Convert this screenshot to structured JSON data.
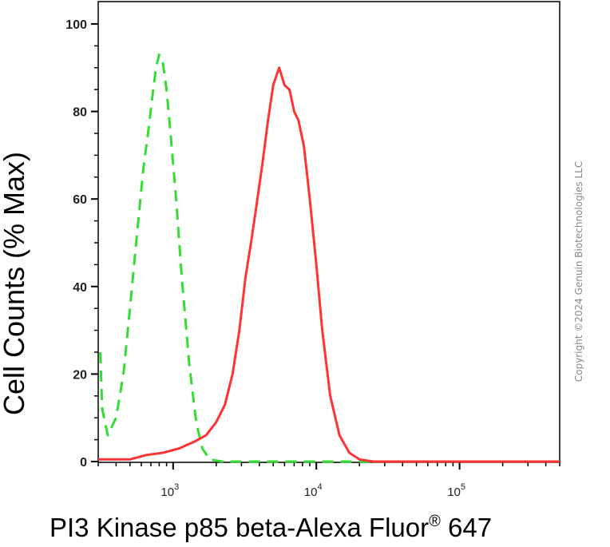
{
  "chart_data": {
    "type": "line",
    "xlabel": "PI3 Kinase p85 beta-Alexa Fluor",
    "xlabel_sup": "®",
    "xlabel_suffix": "647",
    "ylabel": "Cell Counts (% Max)",
    "xscale": "log",
    "xlim": [
      300,
      500000
    ],
    "ylim": [
      0,
      100
    ],
    "yticks": [
      {
        "value": 0,
        "label": "0"
      },
      {
        "value": 20,
        "label": "20"
      },
      {
        "value": 40,
        "label": "40"
      },
      {
        "value": 60,
        "label": "60"
      },
      {
        "value": 80,
        "label": "80"
      },
      {
        "value": 100,
        "label": "100"
      }
    ],
    "xticks": [
      {
        "value": 1000,
        "base": "10",
        "exp": "3"
      },
      {
        "value": 10000,
        "base": "10",
        "exp": "4"
      },
      {
        "value": 100000,
        "base": "10",
        "exp": "5"
      }
    ],
    "grid": false,
    "legend": "none",
    "series": [
      {
        "color": "#33dd33",
        "style": "dashed",
        "points": [
          [
            310,
            25
          ],
          [
            320,
            12
          ],
          [
            350,
            6
          ],
          [
            400,
            10
          ],
          [
            450,
            20
          ],
          [
            500,
            35
          ],
          [
            560,
            52
          ],
          [
            620,
            67
          ],
          [
            680,
            77
          ],
          [
            720,
            84
          ],
          [
            760,
            90
          ],
          [
            800,
            93
          ],
          [
            850,
            91
          ],
          [
            900,
            85
          ],
          [
            960,
            75
          ],
          [
            1050,
            60
          ],
          [
            1150,
            42
          ],
          [
            1300,
            22
          ],
          [
            1450,
            9
          ],
          [
            1600,
            3
          ],
          [
            1800,
            0.5
          ],
          [
            2200,
            0
          ],
          [
            500000,
            0
          ]
        ]
      },
      {
        "color": "#ff3333",
        "style": "solid",
        "points": [
          [
            300,
            0.5
          ],
          [
            500,
            0.5
          ],
          [
            650,
            1.5
          ],
          [
            850,
            2
          ],
          [
            1100,
            3
          ],
          [
            1400,
            4.5
          ],
          [
            1700,
            6
          ],
          [
            2000,
            9
          ],
          [
            2300,
            13
          ],
          [
            2600,
            20
          ],
          [
            2900,
            30
          ],
          [
            3200,
            42
          ],
          [
            3500,
            50
          ],
          [
            3800,
            58
          ],
          [
            4200,
            68
          ],
          [
            4600,
            78
          ],
          [
            5000,
            86
          ],
          [
            5500,
            90
          ],
          [
            6000,
            86
          ],
          [
            6500,
            85
          ],
          [
            7000,
            80
          ],
          [
            7500,
            78
          ],
          [
            8200,
            72
          ],
          [
            9000,
            60
          ],
          [
            10000,
            45
          ],
          [
            11000,
            30
          ],
          [
            12500,
            15
          ],
          [
            14500,
            6
          ],
          [
            17000,
            2
          ],
          [
            20000,
            0.5
          ],
          [
            25000,
            0
          ],
          [
            500000,
            0
          ]
        ]
      }
    ]
  },
  "copyright": "Copyright ©2024 Genuin Biotechnologies LLC"
}
